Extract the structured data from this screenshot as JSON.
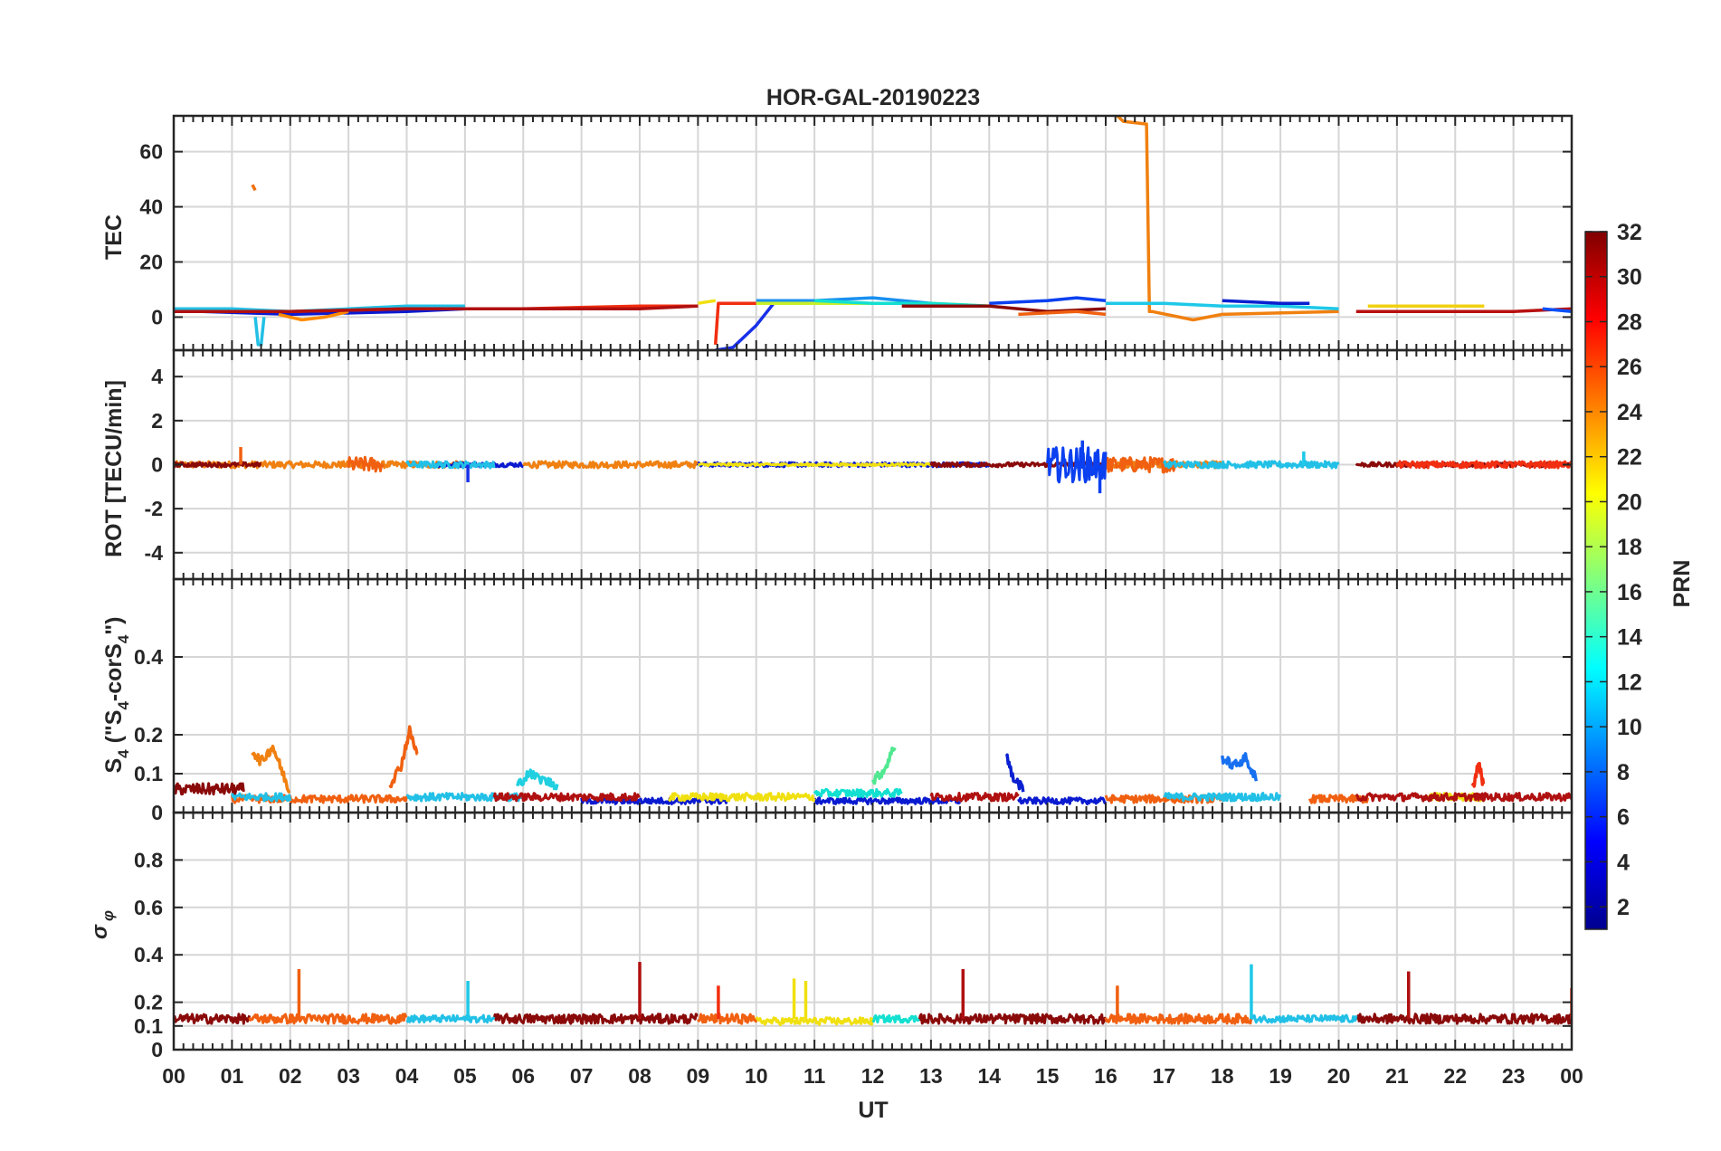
{
  "chart_data": [
    {
      "type": "line",
      "panel": "tec",
      "title": "HOR-GAL-20190223",
      "ylabel": "TEC",
      "xlabel": "UT",
      "xlim": [
        0,
        24
      ],
      "ylim": [
        -12,
        73
      ],
      "yticks": [
        0,
        20,
        40,
        60
      ],
      "x_tick_labels": [
        "00",
        "01",
        "02",
        "03",
        "04",
        "05",
        "06",
        "07",
        "08",
        "09",
        "10",
        "11",
        "12",
        "13",
        "14",
        "15",
        "16",
        "17",
        "18",
        "19",
        "20",
        "21",
        "22",
        "23",
        "00"
      ],
      "grid": true,
      "series": [
        {
          "name": "PRN 11",
          "prn": 11,
          "color": "#22c0e6",
          "x": [
            0.0,
            1.0,
            2.0,
            3.0,
            4.0,
            5.0
          ],
          "y": [
            3,
            3,
            2,
            3,
            4,
            4
          ]
        },
        {
          "name": "PRN 11 dip",
          "prn": 11,
          "color": "#22c0e6",
          "x": [
            1.4,
            1.45,
            1.5,
            1.55
          ],
          "y": [
            0,
            -10,
            -10,
            0
          ]
        },
        {
          "name": "PRN 26",
          "prn": 26,
          "color": "#f07010",
          "x": [
            1.35,
            1.4
          ],
          "y": [
            48,
            46
          ]
        },
        {
          "name": "PRN 2",
          "prn": 2,
          "color": "#0a1ad0",
          "x": [
            0.5,
            2.0,
            4.0,
            5.0
          ],
          "y": [
            2,
            1,
            2,
            3
          ]
        },
        {
          "name": "PRN 24",
          "prn": 24,
          "color": "#ff8a00",
          "x": [
            1.8,
            2.2,
            2.6,
            3.0
          ],
          "y": [
            1,
            -1,
            0,
            2
          ]
        },
        {
          "name": "PRN 28",
          "prn": 28,
          "color": "#f22e10",
          "x": [
            2.0,
            4.0,
            6.0,
            8.0,
            9.0
          ],
          "y": [
            2,
            3,
            3,
            4,
            4
          ]
        },
        {
          "name": "PRN 30",
          "prn": 30,
          "color": "#b01010",
          "x": [
            0.0,
            2.0,
            4.0,
            6.0,
            8.0,
            9.0
          ],
          "y": [
            2,
            2,
            3,
            3,
            3,
            4
          ]
        },
        {
          "name": "PRN 20",
          "prn": 20,
          "color": "#f0e010",
          "x": [
            9.0,
            9.3
          ],
          "y": [
            5,
            6
          ]
        },
        {
          "name": "PRN 28 b",
          "prn": 28,
          "color": "#f22e10",
          "x": [
            9.3,
            9.35,
            9.6,
            10.0
          ],
          "y": [
            -10,
            5,
            5,
            5
          ]
        },
        {
          "name": "PRN 3",
          "prn": 3,
          "color": "#1830e8",
          "x": [
            9.3,
            9.6,
            10.0,
            10.3
          ],
          "y": [
            -12,
            -11,
            -3,
            5
          ]
        },
        {
          "name": "PRN 10",
          "prn": 10,
          "color": "#1890f0",
          "x": [
            10.0,
            11.0,
            12.0,
            13.0
          ],
          "y": [
            6,
            6,
            7,
            5
          ]
        },
        {
          "name": "PRN 18",
          "prn": 18,
          "color": "#c8f02a",
          "x": [
            10.0,
            11.5,
            13.0,
            14.0
          ],
          "y": [
            5,
            5,
            5,
            4
          ]
        },
        {
          "name": "PRN 13",
          "prn": 13,
          "color": "#12e0d0",
          "x": [
            11.0,
            12.0,
            13.0,
            14.0
          ],
          "y": [
            6,
            5,
            5,
            4
          ]
        },
        {
          "name": "PRN 5",
          "prn": 5,
          "color": "#0a40f0",
          "x": [
            14.0,
            15.0,
            15.5,
            16.0
          ],
          "y": [
            5,
            6,
            7,
            6
          ]
        },
        {
          "name": "PRN 31",
          "prn": 31,
          "color": "#8a0a0a",
          "x": [
            12.5,
            14.0,
            15.0,
            16.0
          ],
          "y": [
            4,
            4,
            2,
            3
          ]
        },
        {
          "name": "PRN 25",
          "prn": 25,
          "color": "#f06010",
          "x": [
            14.5,
            15.5,
            16.0
          ],
          "y": [
            1,
            2,
            1
          ]
        },
        {
          "name": "PRN 24 b",
          "prn": 24,
          "color": "#f08010",
          "x": [
            16.2,
            16.3,
            16.7,
            16.75,
            16.8,
            17.5,
            18.0,
            20.0
          ],
          "y": [
            73,
            71,
            70,
            2,
            2,
            -1,
            1,
            2
          ]
        },
        {
          "name": "PRN 12",
          "prn": 12,
          "color": "#1ec8e8",
          "x": [
            16.0,
            17.0,
            18.0,
            19.0,
            20.0
          ],
          "y": [
            5,
            5,
            4,
            4,
            3
          ]
        },
        {
          "name": "PRN 4",
          "prn": 4,
          "color": "#0a20d0",
          "x": [
            18.0,
            19.0,
            19.5
          ],
          "y": [
            6,
            5,
            5
          ]
        },
        {
          "name": "PRN 21",
          "prn": 21,
          "color": "#f0d010",
          "x": [
            20.5,
            21.5,
            22.5
          ],
          "y": [
            4,
            4,
            4
          ]
        },
        {
          "name": "PRN 30 b",
          "prn": 30,
          "color": "#b81010",
          "x": [
            20.3,
            21.0,
            22.0,
            23.0,
            24.0
          ],
          "y": [
            2,
            2,
            2,
            2,
            3
          ]
        },
        {
          "name": "PRN 6",
          "prn": 6,
          "color": "#0a50f8",
          "x": [
            23.5,
            24.0
          ],
          "y": [
            3,
            2
          ]
        }
      ]
    },
    {
      "type": "line",
      "panel": "rot",
      "ylabel": "ROT [TECU/min]",
      "xlim": [
        0,
        24
      ],
      "ylim": [
        -5.2,
        5.2
      ],
      "yticks": [
        -4,
        -2,
        0,
        2,
        4
      ],
      "grid": true,
      "series": [
        {
          "name": "PRN 24",
          "prn": 24,
          "color": "#f08010",
          "amplitude": 0.15,
          "segments": [
            [
              0.0,
              5.0
            ],
            [
              6.0,
              9.0
            ],
            [
              16.0,
              18.0
            ]
          ]
        },
        {
          "name": "PRN 26 burst",
          "prn": 26,
          "color": "#f06010",
          "amplitude": 0.35,
          "segments": [
            [
              3.0,
              3.6
            ],
            [
              16.0,
              17.2
            ]
          ]
        },
        {
          "name": "PRN 2",
          "prn": 2,
          "color": "#0a1ad0",
          "amplitude": 0.1,
          "segments": [
            [
              4.5,
              6.0
            ],
            [
              9.0,
              14.0
            ]
          ]
        },
        {
          "name": "PRN 11",
          "prn": 11,
          "color": "#22c0e6",
          "amplitude": 0.15,
          "segments": [
            [
              4.0,
              5.5
            ],
            [
              17.0,
              20.0
            ]
          ]
        },
        {
          "name": "PRN 20",
          "prn": 20,
          "color": "#f0e010",
          "amplitude": 0.05,
          "segments": [
            [
              9.0,
              13.0
            ]
          ]
        },
        {
          "name": "PRN 31",
          "prn": 31,
          "color": "#8a0a0a",
          "amplitude": 0.1,
          "segments": [
            [
              0.0,
              1.5
            ],
            [
              13.0,
              16.0
            ],
            [
              20.3,
              24.0
            ]
          ]
        },
        {
          "name": "PRN 5 burst",
          "prn": 5,
          "color": "#0a40f0",
          "amplitude": 0.8,
          "segments": [
            [
              15.0,
              16.0
            ]
          ]
        },
        {
          "name": "PRN 28",
          "prn": 28,
          "color": "#f22e10",
          "amplitude": 0.15,
          "segments": [
            [
              21.0,
              24.0
            ]
          ]
        }
      ],
      "spikes": [
        {
          "prn": 26,
          "color": "#f06010",
          "x": 1.15,
          "y": 0.8
        },
        {
          "prn": 3,
          "color": "#1830e8",
          "x": 5.05,
          "y": -0.8
        },
        {
          "prn": 5,
          "color": "#0a40f0",
          "x": 15.6,
          "y": 1.1
        },
        {
          "prn": 5,
          "color": "#0a40f0",
          "x": 15.9,
          "y": -1.3
        },
        {
          "prn": 12,
          "color": "#1ec8e8",
          "x": 19.4,
          "y": 0.6
        }
      ]
    },
    {
      "type": "line",
      "panel": "s4",
      "ylabel": "S4 (\"S4-corS4\")",
      "xlim": [
        0,
        24
      ],
      "ylim": [
        0,
        0.6
      ],
      "yticks": [
        0,
        0.1,
        0.2,
        0.4
      ],
      "ytick_labels": [
        "0",
        "0.1",
        "0.2",
        "0.4"
      ],
      "grid": true,
      "series": [
        {
          "name": "PRN 31",
          "prn": 31,
          "color": "#8a0a0a",
          "baseline": 0.06,
          "amplitude": 0.015,
          "segments": [
            [
              0.0,
              1.2
            ]
          ]
        },
        {
          "name": "PRN 25",
          "prn": 25,
          "color": "#f06010",
          "baseline": 0.035,
          "amplitude": 0.01,
          "segments": [
            [
              1.0,
              4.0
            ],
            [
              16.0,
              18.0
            ],
            [
              19.5,
              20.5
            ]
          ]
        },
        {
          "name": "PRN 11",
          "prn": 11,
          "color": "#22c0e6",
          "baseline": 0.04,
          "amplitude": 0.01,
          "segments": [
            [
              1.0,
              2.0
            ],
            [
              4.0,
              6.0
            ],
            [
              17.0,
              19.0
            ]
          ]
        },
        {
          "name": "PRN 2",
          "prn": 2,
          "color": "#0a1ad0",
          "baseline": 0.03,
          "amplitude": 0.008,
          "segments": [
            [
              7.0,
              9.5
            ],
            [
              11.0,
              13.5
            ],
            [
              14.5,
              16.0
            ]
          ]
        },
        {
          "name": "PRN 20",
          "prn": 20,
          "color": "#f0e010",
          "baseline": 0.04,
          "amplitude": 0.01,
          "segments": [
            [
              8.5,
              11.0
            ],
            [
              21.5,
              22.5
            ]
          ]
        },
        {
          "name": "PRN 30",
          "prn": 30,
          "color": "#b01010",
          "baseline": 0.04,
          "amplitude": 0.01,
          "segments": [
            [
              5.5,
              8.0
            ],
            [
              13.0,
              14.5
            ],
            [
              20.3,
              24.0
            ]
          ]
        },
        {
          "name": "PRN 13",
          "prn": 13,
          "color": "#12e0d0",
          "baseline": 0.05,
          "amplitude": 0.01,
          "segments": [
            [
              11.0,
              12.5
            ]
          ]
        }
      ],
      "bumps": [
        {
          "prn": 24,
          "color": "#f08010",
          "x": [
            1.35,
            1.5,
            1.7,
            1.85,
            2.0
          ],
          "y": [
            0.16,
            0.13,
            0.17,
            0.11,
            0.05
          ]
        },
        {
          "prn": 26,
          "color": "#f06010",
          "x": [
            3.7,
            3.9,
            4.05,
            4.2
          ],
          "y": [
            0.07,
            0.12,
            0.21,
            0.14
          ]
        },
        {
          "prn": 14,
          "color": "#20d0e0",
          "x": [
            5.9,
            6.1,
            6.4,
            6.6
          ],
          "y": [
            0.07,
            0.1,
            0.08,
            0.07
          ]
        },
        {
          "prn": 16,
          "color": "#50e890",
          "x": [
            12.0,
            12.2,
            12.4
          ],
          "y": [
            0.08,
            0.11,
            0.18
          ]
        },
        {
          "prn": 4,
          "color": "#0a20d0",
          "x": [
            14.3,
            14.4,
            14.6
          ],
          "y": [
            0.15,
            0.09,
            0.06
          ]
        },
        {
          "prn": 8,
          "color": "#1870f0",
          "x": [
            18.0,
            18.2,
            18.4,
            18.6
          ],
          "y": [
            0.14,
            0.12,
            0.14,
            0.08
          ]
        },
        {
          "prn": 28,
          "color": "#f22e10",
          "x": [
            22.3,
            22.4,
            22.5
          ],
          "y": [
            0.06,
            0.13,
            0.06
          ]
        }
      ]
    },
    {
      "type": "line",
      "panel": "sigma_phi",
      "ylabel": "σ φ",
      "xlim": [
        0,
        24
      ],
      "ylim": [
        0,
        1
      ],
      "yticks": [
        0,
        0.1,
        0.2,
        0.4,
        0.6,
        0.8
      ],
      "ytick_labels": [
        "0",
        "0.1",
        "0.2",
        "0.4",
        "0.6",
        "0.8"
      ],
      "grid": true,
      "series": [
        {
          "name": "PRN 31",
          "prn": 31,
          "color": "#8a0a0a",
          "baseline": 0.13,
          "amplitude": 0.02,
          "segments": [
            [
              0.0,
              1.3
            ],
            [
              5.5,
              9.0
            ],
            [
              12.8,
              16.0
            ],
            [
              20.3,
              24.0
            ]
          ]
        },
        {
          "name": "PRN 25",
          "prn": 25,
          "color": "#f06010",
          "baseline": 0.13,
          "amplitude": 0.02,
          "segments": [
            [
              1.3,
              4.0
            ],
            [
              9.0,
              10.0
            ],
            [
              16.0,
              18.5
            ]
          ]
        },
        {
          "name": "PRN 11",
          "prn": 11,
          "color": "#22c0e6",
          "baseline": 0.13,
          "amplitude": 0.015,
          "segments": [
            [
              4.0,
              5.5
            ],
            [
              18.5,
              20.3
            ]
          ]
        },
        {
          "name": "PRN 20",
          "prn": 20,
          "color": "#f0e010",
          "baseline": 0.12,
          "amplitude": 0.015,
          "segments": [
            [
              10.0,
              12.0
            ]
          ]
        },
        {
          "name": "PRN 13",
          "prn": 13,
          "color": "#12e0d0",
          "baseline": 0.13,
          "amplitude": 0.015,
          "segments": [
            [
              12.0,
              12.8
            ]
          ]
        }
      ],
      "spikes": [
        {
          "prn": 26,
          "color": "#f06010",
          "x": 2.15,
          "y": 0.34
        },
        {
          "prn": 12,
          "color": "#1ec8e8",
          "x": 5.05,
          "y": 0.29
        },
        {
          "prn": 30,
          "color": "#b01010",
          "x": 8.0,
          "y": 0.37
        },
        {
          "prn": 28,
          "color": "#f22e10",
          "x": 9.35,
          "y": 0.27
        },
        {
          "prn": 20,
          "color": "#f0e010",
          "x": 10.65,
          "y": 0.3
        },
        {
          "prn": 20,
          "color": "#f0e010",
          "x": 10.85,
          "y": 0.29
        },
        {
          "prn": 30,
          "color": "#b01010",
          "x": 13.55,
          "y": 0.34
        },
        {
          "prn": 26,
          "color": "#f06010",
          "x": 16.2,
          "y": 0.27
        },
        {
          "prn": 12,
          "color": "#1ec8e8",
          "x": 18.5,
          "y": 0.36
        },
        {
          "prn": 30,
          "color": "#b01010",
          "x": 21.2,
          "y": 0.33
        },
        {
          "prn": 28,
          "color": "#f22e10",
          "x": 24.0,
          "y": 0.26
        }
      ]
    }
  ],
  "colorbar": {
    "label": "PRN",
    "range": [
      1,
      32
    ],
    "ticks": [
      2,
      4,
      6,
      8,
      10,
      12,
      14,
      16,
      18,
      20,
      22,
      24,
      26,
      28,
      30,
      32
    ],
    "tick_labels": [
      "2",
      "4",
      "6",
      "8",
      "10",
      "12",
      "14",
      "16",
      "18",
      "20",
      "22",
      "24",
      "26",
      "28",
      "30",
      "32"
    ]
  },
  "labels": {
    "title": "HOR-GAL-20190223",
    "xlabel": "UT",
    "tec_ylabel": "TEC",
    "rot_ylabel": "ROT [TECU/min]",
    "s4_main": "S",
    "s4_sub": "4",
    "s4_mid1": " (\"S",
    "s4_mid2": "-corS",
    "s4_end": "\")",
    "sigma_main": "σ",
    "sigma_sub": "φ",
    "colorbar_label": "PRN"
  }
}
